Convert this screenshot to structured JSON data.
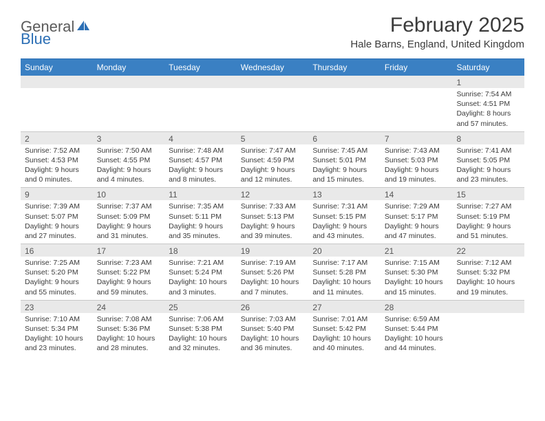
{
  "logo": {
    "part1": "General",
    "part2": "Blue"
  },
  "title": "February 2025",
  "location": "Hale Barns, England, United Kingdom",
  "weekday_header_bg": "#3a80c3",
  "daynum_bg": "#e9e9e9",
  "border_color": "#c8c8c8",
  "accent_color": "#2c6fb5",
  "weekdays": [
    "Sunday",
    "Monday",
    "Tuesday",
    "Wednesday",
    "Thursday",
    "Friday",
    "Saturday"
  ],
  "weeks": [
    [
      {
        "n": "",
        "sr": "",
        "ss": "",
        "dl1": "",
        "dl2": ""
      },
      {
        "n": "",
        "sr": "",
        "ss": "",
        "dl1": "",
        "dl2": ""
      },
      {
        "n": "",
        "sr": "",
        "ss": "",
        "dl1": "",
        "dl2": ""
      },
      {
        "n": "",
        "sr": "",
        "ss": "",
        "dl1": "",
        "dl2": ""
      },
      {
        "n": "",
        "sr": "",
        "ss": "",
        "dl1": "",
        "dl2": ""
      },
      {
        "n": "",
        "sr": "",
        "ss": "",
        "dl1": "",
        "dl2": ""
      },
      {
        "n": "1",
        "sr": "Sunrise: 7:54 AM",
        "ss": "Sunset: 4:51 PM",
        "dl1": "Daylight: 8 hours",
        "dl2": "and 57 minutes."
      }
    ],
    [
      {
        "n": "2",
        "sr": "Sunrise: 7:52 AM",
        "ss": "Sunset: 4:53 PM",
        "dl1": "Daylight: 9 hours",
        "dl2": "and 0 minutes."
      },
      {
        "n": "3",
        "sr": "Sunrise: 7:50 AM",
        "ss": "Sunset: 4:55 PM",
        "dl1": "Daylight: 9 hours",
        "dl2": "and 4 minutes."
      },
      {
        "n": "4",
        "sr": "Sunrise: 7:48 AM",
        "ss": "Sunset: 4:57 PM",
        "dl1": "Daylight: 9 hours",
        "dl2": "and 8 minutes."
      },
      {
        "n": "5",
        "sr": "Sunrise: 7:47 AM",
        "ss": "Sunset: 4:59 PM",
        "dl1": "Daylight: 9 hours",
        "dl2": "and 12 minutes."
      },
      {
        "n": "6",
        "sr": "Sunrise: 7:45 AM",
        "ss": "Sunset: 5:01 PM",
        "dl1": "Daylight: 9 hours",
        "dl2": "and 15 minutes."
      },
      {
        "n": "7",
        "sr": "Sunrise: 7:43 AM",
        "ss": "Sunset: 5:03 PM",
        "dl1": "Daylight: 9 hours",
        "dl2": "and 19 minutes."
      },
      {
        "n": "8",
        "sr": "Sunrise: 7:41 AM",
        "ss": "Sunset: 5:05 PM",
        "dl1": "Daylight: 9 hours",
        "dl2": "and 23 minutes."
      }
    ],
    [
      {
        "n": "9",
        "sr": "Sunrise: 7:39 AM",
        "ss": "Sunset: 5:07 PM",
        "dl1": "Daylight: 9 hours",
        "dl2": "and 27 minutes."
      },
      {
        "n": "10",
        "sr": "Sunrise: 7:37 AM",
        "ss": "Sunset: 5:09 PM",
        "dl1": "Daylight: 9 hours",
        "dl2": "and 31 minutes."
      },
      {
        "n": "11",
        "sr": "Sunrise: 7:35 AM",
        "ss": "Sunset: 5:11 PM",
        "dl1": "Daylight: 9 hours",
        "dl2": "and 35 minutes."
      },
      {
        "n": "12",
        "sr": "Sunrise: 7:33 AM",
        "ss": "Sunset: 5:13 PM",
        "dl1": "Daylight: 9 hours",
        "dl2": "and 39 minutes."
      },
      {
        "n": "13",
        "sr": "Sunrise: 7:31 AM",
        "ss": "Sunset: 5:15 PM",
        "dl1": "Daylight: 9 hours",
        "dl2": "and 43 minutes."
      },
      {
        "n": "14",
        "sr": "Sunrise: 7:29 AM",
        "ss": "Sunset: 5:17 PM",
        "dl1": "Daylight: 9 hours",
        "dl2": "and 47 minutes."
      },
      {
        "n": "15",
        "sr": "Sunrise: 7:27 AM",
        "ss": "Sunset: 5:19 PM",
        "dl1": "Daylight: 9 hours",
        "dl2": "and 51 minutes."
      }
    ],
    [
      {
        "n": "16",
        "sr": "Sunrise: 7:25 AM",
        "ss": "Sunset: 5:20 PM",
        "dl1": "Daylight: 9 hours",
        "dl2": "and 55 minutes."
      },
      {
        "n": "17",
        "sr": "Sunrise: 7:23 AM",
        "ss": "Sunset: 5:22 PM",
        "dl1": "Daylight: 9 hours",
        "dl2": "and 59 minutes."
      },
      {
        "n": "18",
        "sr": "Sunrise: 7:21 AM",
        "ss": "Sunset: 5:24 PM",
        "dl1": "Daylight: 10 hours",
        "dl2": "and 3 minutes."
      },
      {
        "n": "19",
        "sr": "Sunrise: 7:19 AM",
        "ss": "Sunset: 5:26 PM",
        "dl1": "Daylight: 10 hours",
        "dl2": "and 7 minutes."
      },
      {
        "n": "20",
        "sr": "Sunrise: 7:17 AM",
        "ss": "Sunset: 5:28 PM",
        "dl1": "Daylight: 10 hours",
        "dl2": "and 11 minutes."
      },
      {
        "n": "21",
        "sr": "Sunrise: 7:15 AM",
        "ss": "Sunset: 5:30 PM",
        "dl1": "Daylight: 10 hours",
        "dl2": "and 15 minutes."
      },
      {
        "n": "22",
        "sr": "Sunrise: 7:12 AM",
        "ss": "Sunset: 5:32 PM",
        "dl1": "Daylight: 10 hours",
        "dl2": "and 19 minutes."
      }
    ],
    [
      {
        "n": "23",
        "sr": "Sunrise: 7:10 AM",
        "ss": "Sunset: 5:34 PM",
        "dl1": "Daylight: 10 hours",
        "dl2": "and 23 minutes."
      },
      {
        "n": "24",
        "sr": "Sunrise: 7:08 AM",
        "ss": "Sunset: 5:36 PM",
        "dl1": "Daylight: 10 hours",
        "dl2": "and 28 minutes."
      },
      {
        "n": "25",
        "sr": "Sunrise: 7:06 AM",
        "ss": "Sunset: 5:38 PM",
        "dl1": "Daylight: 10 hours",
        "dl2": "and 32 minutes."
      },
      {
        "n": "26",
        "sr": "Sunrise: 7:03 AM",
        "ss": "Sunset: 5:40 PM",
        "dl1": "Daylight: 10 hours",
        "dl2": "and 36 minutes."
      },
      {
        "n": "27",
        "sr": "Sunrise: 7:01 AM",
        "ss": "Sunset: 5:42 PM",
        "dl1": "Daylight: 10 hours",
        "dl2": "and 40 minutes."
      },
      {
        "n": "28",
        "sr": "Sunrise: 6:59 AM",
        "ss": "Sunset: 5:44 PM",
        "dl1": "Daylight: 10 hours",
        "dl2": "and 44 minutes."
      },
      {
        "n": "",
        "sr": "",
        "ss": "",
        "dl1": "",
        "dl2": ""
      }
    ]
  ]
}
